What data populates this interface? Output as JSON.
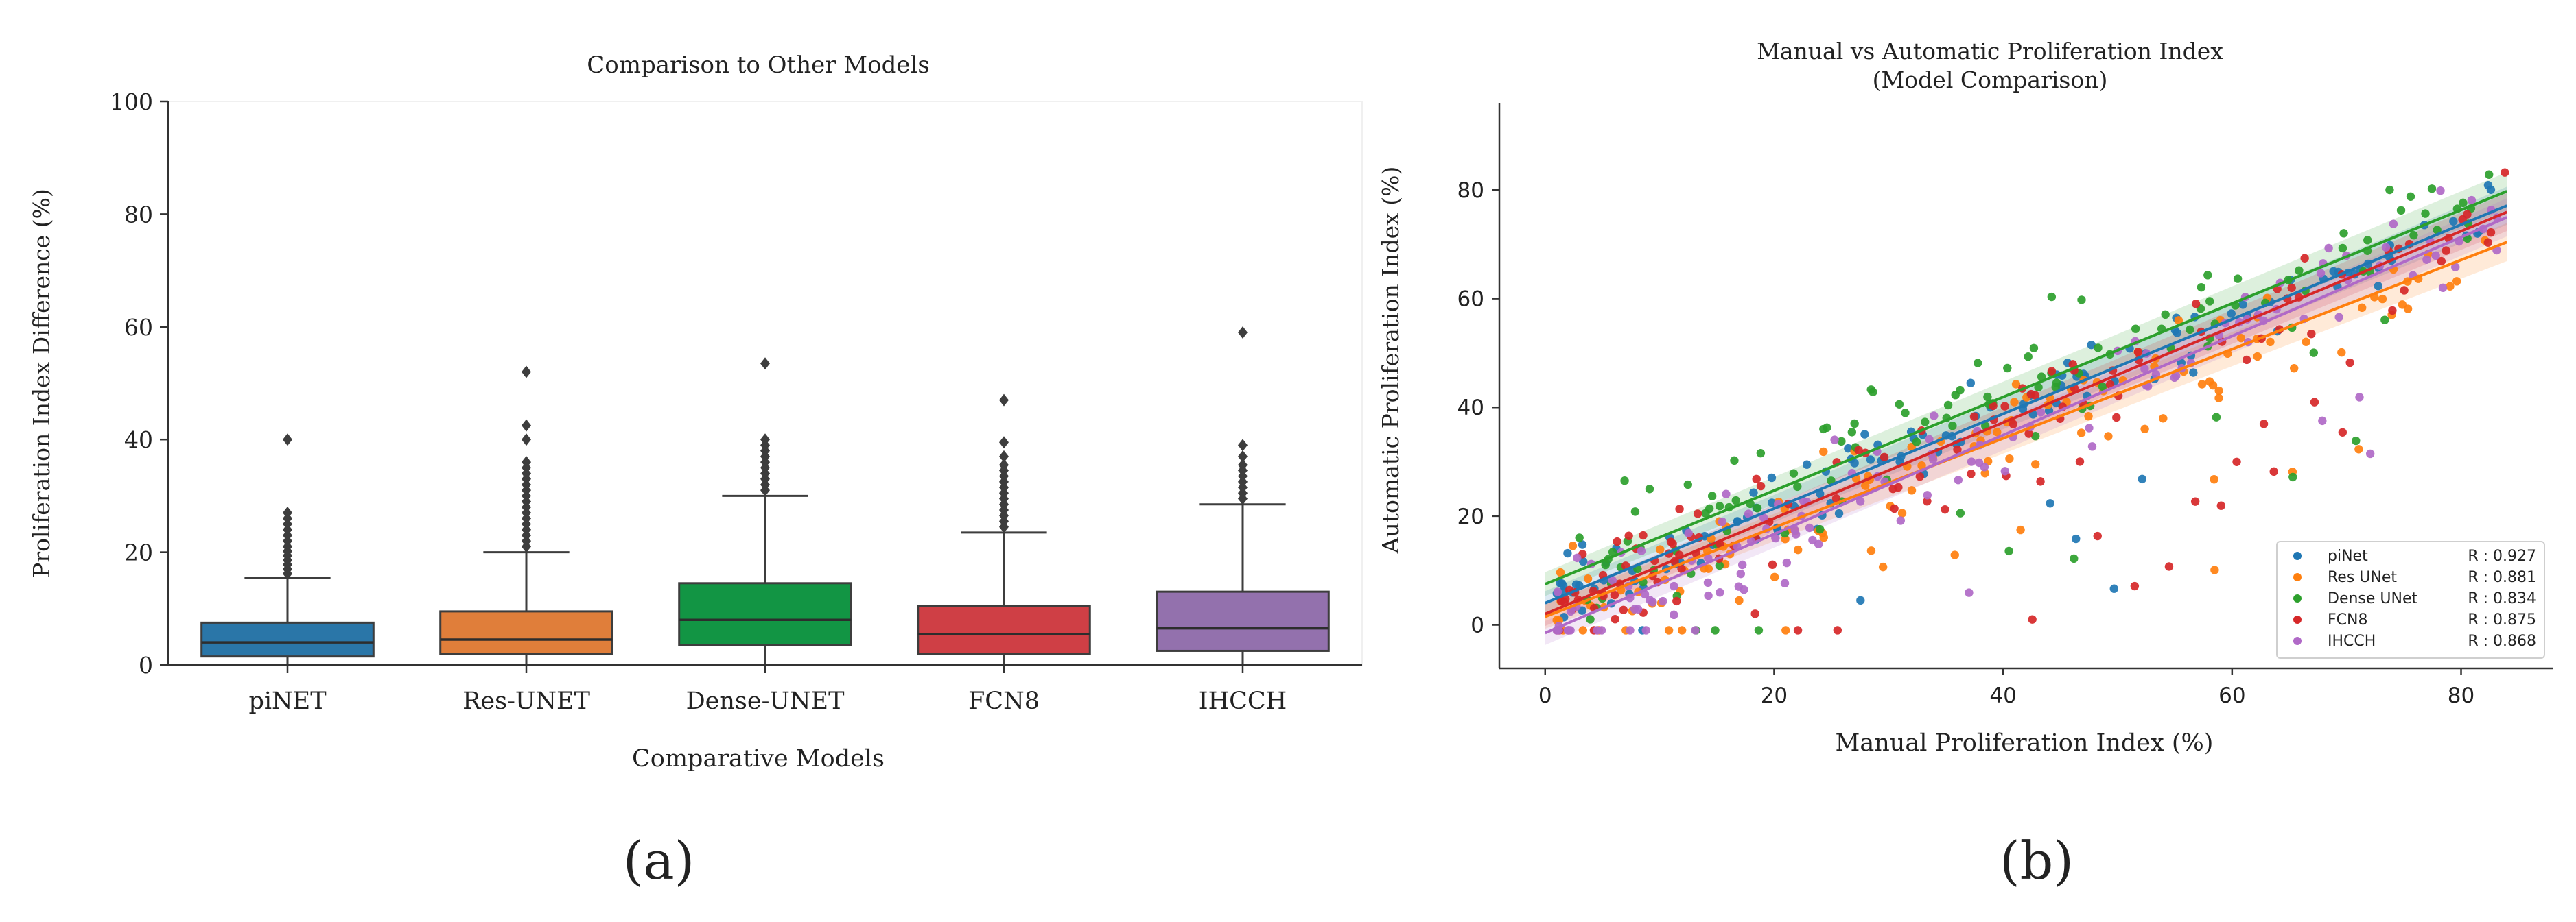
{
  "panel_labels": {
    "a": "(a)",
    "b": "(b)"
  },
  "chart_data": [
    {
      "type": "box",
      "title": "Comparison to Other Models",
      "xlabel": "Comparative Models",
      "ylabel": "Proliferation Index Difference (%)",
      "ylim": [
        0,
        100
      ],
      "yticks": [
        0,
        20,
        40,
        60,
        80,
        100
      ],
      "categories": [
        "piNET",
        "Res-UNET",
        "Dense-UNET",
        "FCN8",
        "IHCCH"
      ],
      "colors": [
        "#2a76a8",
        "#e07e3a",
        "#129544",
        "#cf3f45",
        "#9371ad"
      ],
      "boxes": [
        {
          "whisker_low": 0,
          "q1": 1.5,
          "median": 4.0,
          "q3": 7.5,
          "whisker_high": 15.5,
          "outliers": [
            16.2,
            17.0,
            17.8,
            18.6,
            19.4,
            20.2,
            21.0,
            22.0,
            23.0,
            24.0,
            25.0,
            26.0,
            27.0,
            40.0
          ]
        },
        {
          "whisker_low": 0,
          "q1": 2.0,
          "median": 4.5,
          "q3": 9.5,
          "whisker_high": 20.0,
          "outliers": [
            21.0,
            22.0,
            23.0,
            24.0,
            25.0,
            26.0,
            27.0,
            28.0,
            29.0,
            30.0,
            31.0,
            32.0,
            33.0,
            34.0,
            35.0,
            36.0,
            40.0,
            42.5,
            52.0
          ]
        },
        {
          "whisker_low": 0,
          "q1": 3.5,
          "median": 8.0,
          "q3": 14.5,
          "whisker_high": 30.0,
          "outliers": [
            31.0,
            32.0,
            33.0,
            34.0,
            35.0,
            36.0,
            37.0,
            38.0,
            39.0,
            40.0,
            53.5
          ]
        },
        {
          "whisker_low": 0,
          "q1": 2.0,
          "median": 5.5,
          "q3": 10.5,
          "whisker_high": 23.5,
          "outliers": [
            24.5,
            25.5,
            26.5,
            27.5,
            28.5,
            29.5,
            30.5,
            31.5,
            32.5,
            33.5,
            34.5,
            35.5,
            37.0,
            39.5,
            47.0
          ]
        },
        {
          "whisker_low": 0,
          "q1": 2.5,
          "median": 6.5,
          "q3": 13.0,
          "whisker_high": 28.5,
          "outliers": [
            29.5,
            30.5,
            31.5,
            32.5,
            33.5,
            34.5,
            35.5,
            37.0,
            39.0,
            59.0
          ]
        }
      ]
    },
    {
      "type": "scatter",
      "title": [
        "Manual vs Automatic Proliferation Index",
        "(Model Comparison)"
      ],
      "xlabel": "Manual Proliferation Index (%)",
      "ylabel": "Automatic Proliferation Index (%)",
      "xlim": [
        -4,
        88
      ],
      "ylim": [
        -8,
        96
      ],
      "xticks": [
        0,
        20,
        40,
        60,
        80
      ],
      "yticks": [
        0,
        20,
        40,
        60,
        80
      ],
      "legend_position": "bottom-right",
      "series": [
        {
          "name": "piNet",
          "r_label": "R : 0.927",
          "color": "#1f77b4",
          "slope": 0.87,
          "intercept": 4.0,
          "spread": 7,
          "fit_range": [
            0,
            84
          ]
        },
        {
          "name": "Res UNet",
          "r_label": "R : 0.881",
          "color": "#ff7f0e",
          "slope": 0.82,
          "intercept": 1.5,
          "spread": 9,
          "fit_range": [
            0,
            84
          ]
        },
        {
          "name": "Dense UNet",
          "r_label": "R : 0.834",
          "color": "#2ca02c",
          "slope": 0.86,
          "intercept": 7.5,
          "spread": 11,
          "fit_range": [
            0,
            84
          ]
        },
        {
          "name": "FCN8",
          "r_label": "R : 0.875",
          "color": "#d62728",
          "slope": 0.88,
          "intercept": 2.0,
          "spread": 10,
          "fit_range": [
            0,
            84
          ]
        },
        {
          "name": "IHCCH",
          "r_label": "R : 0.868",
          "color": "#b069c7",
          "slope": 0.91,
          "intercept": -1.5,
          "spread": 10,
          "fit_range": [
            0,
            84
          ]
        }
      ]
    }
  ]
}
